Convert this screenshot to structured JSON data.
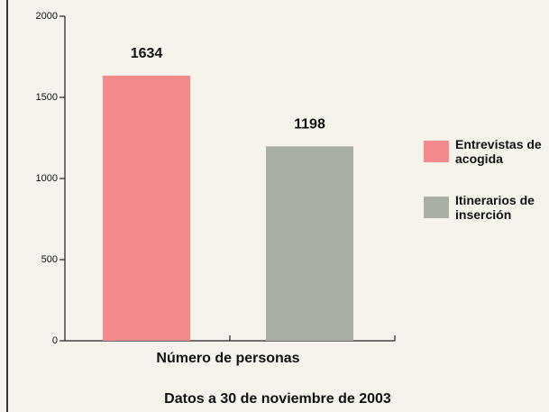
{
  "chart_data": {
    "type": "bar",
    "categories": [
      "Número de personas"
    ],
    "series": [
      {
        "name": "Entrevistas de acogida",
        "color": "#f4898b",
        "values": [
          1634
        ]
      },
      {
        "name": "Itinerarios de inserción",
        "color": "#a9afa2",
        "values": [
          1198
        ]
      }
    ],
    "ylim": [
      0,
      2000
    ],
    "yticks": [
      0,
      500,
      1000,
      1500,
      2000
    ],
    "caption": "Datos a 30 de noviembre de 2003"
  }
}
